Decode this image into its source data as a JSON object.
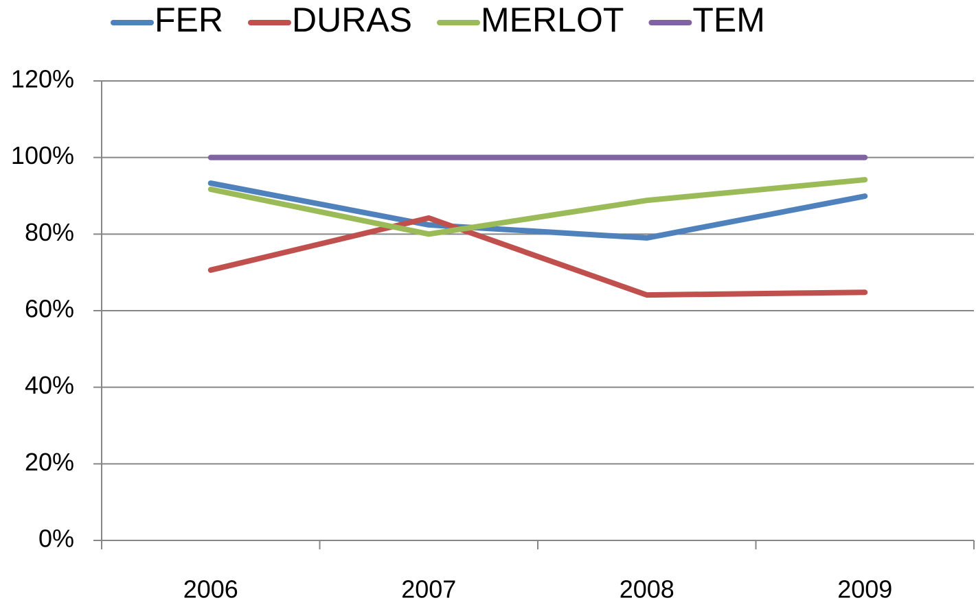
{
  "chart_data": {
    "type": "line",
    "categories": [
      "2006",
      "2007",
      "2008",
      "2009"
    ],
    "series": [
      {
        "name": "FER",
        "color": "#4f81bd",
        "values": [
          93.3,
          82.4,
          79,
          89.9
        ]
      },
      {
        "name": "DURAS",
        "color": "#c0504d",
        "values": [
          70.6,
          84.2,
          64.1,
          64.8
        ]
      },
      {
        "name": "MERLOT",
        "color": "#9bbb59",
        "values": [
          91.7,
          80,
          88.8,
          94.2
        ]
      },
      {
        "name": "TEM",
        "color": "#8064a2",
        "values": [
          100,
          100,
          100,
          100
        ]
      }
    ],
    "ylim": [
      0,
      120
    ],
    "yticks": [
      {
        "value": 0,
        "label": "0%"
      },
      {
        "value": 20,
        "label": "20%"
      },
      {
        "value": 40,
        "label": "40%"
      },
      {
        "value": 60,
        "label": "60%"
      },
      {
        "value": 80,
        "label": "80%"
      },
      {
        "value": 100,
        "label": "100%"
      },
      {
        "value": 120,
        "label": "120%"
      }
    ],
    "grid": true,
    "legend": "top"
  }
}
